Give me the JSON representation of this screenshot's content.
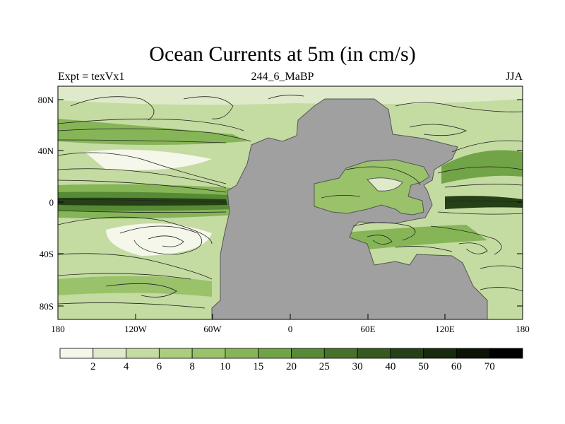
{
  "header": {
    "title": "Ocean Currents at 5m (in cm/s)",
    "left": "Expt = texVx1",
    "center": "244_6_MaBP",
    "right": "JJA"
  },
  "axes": {
    "lat_ticks": [
      "80N",
      "40N",
      "0",
      "40S",
      "80S"
    ],
    "lon_ticks": [
      "180",
      "120W",
      "60W",
      "0",
      "60E",
      "120E",
      "180"
    ]
  },
  "colorbar": {
    "labels": [
      "2",
      "4",
      "6",
      "8",
      "10",
      "15",
      "20",
      "25",
      "30",
      "40",
      "50",
      "60",
      "70"
    ],
    "colors": [
      "#f4f7ea",
      "#dfeacb",
      "#c4dba2",
      "#aace7e",
      "#99c26a",
      "#86b557",
      "#70a446",
      "#578a35",
      "#467229",
      "#36591f",
      "#254016",
      "#172a0e",
      "#0b1407",
      "#000000"
    ]
  },
  "palette": {
    "land": "#a0a0a0",
    "coast": "#555555"
  }
}
